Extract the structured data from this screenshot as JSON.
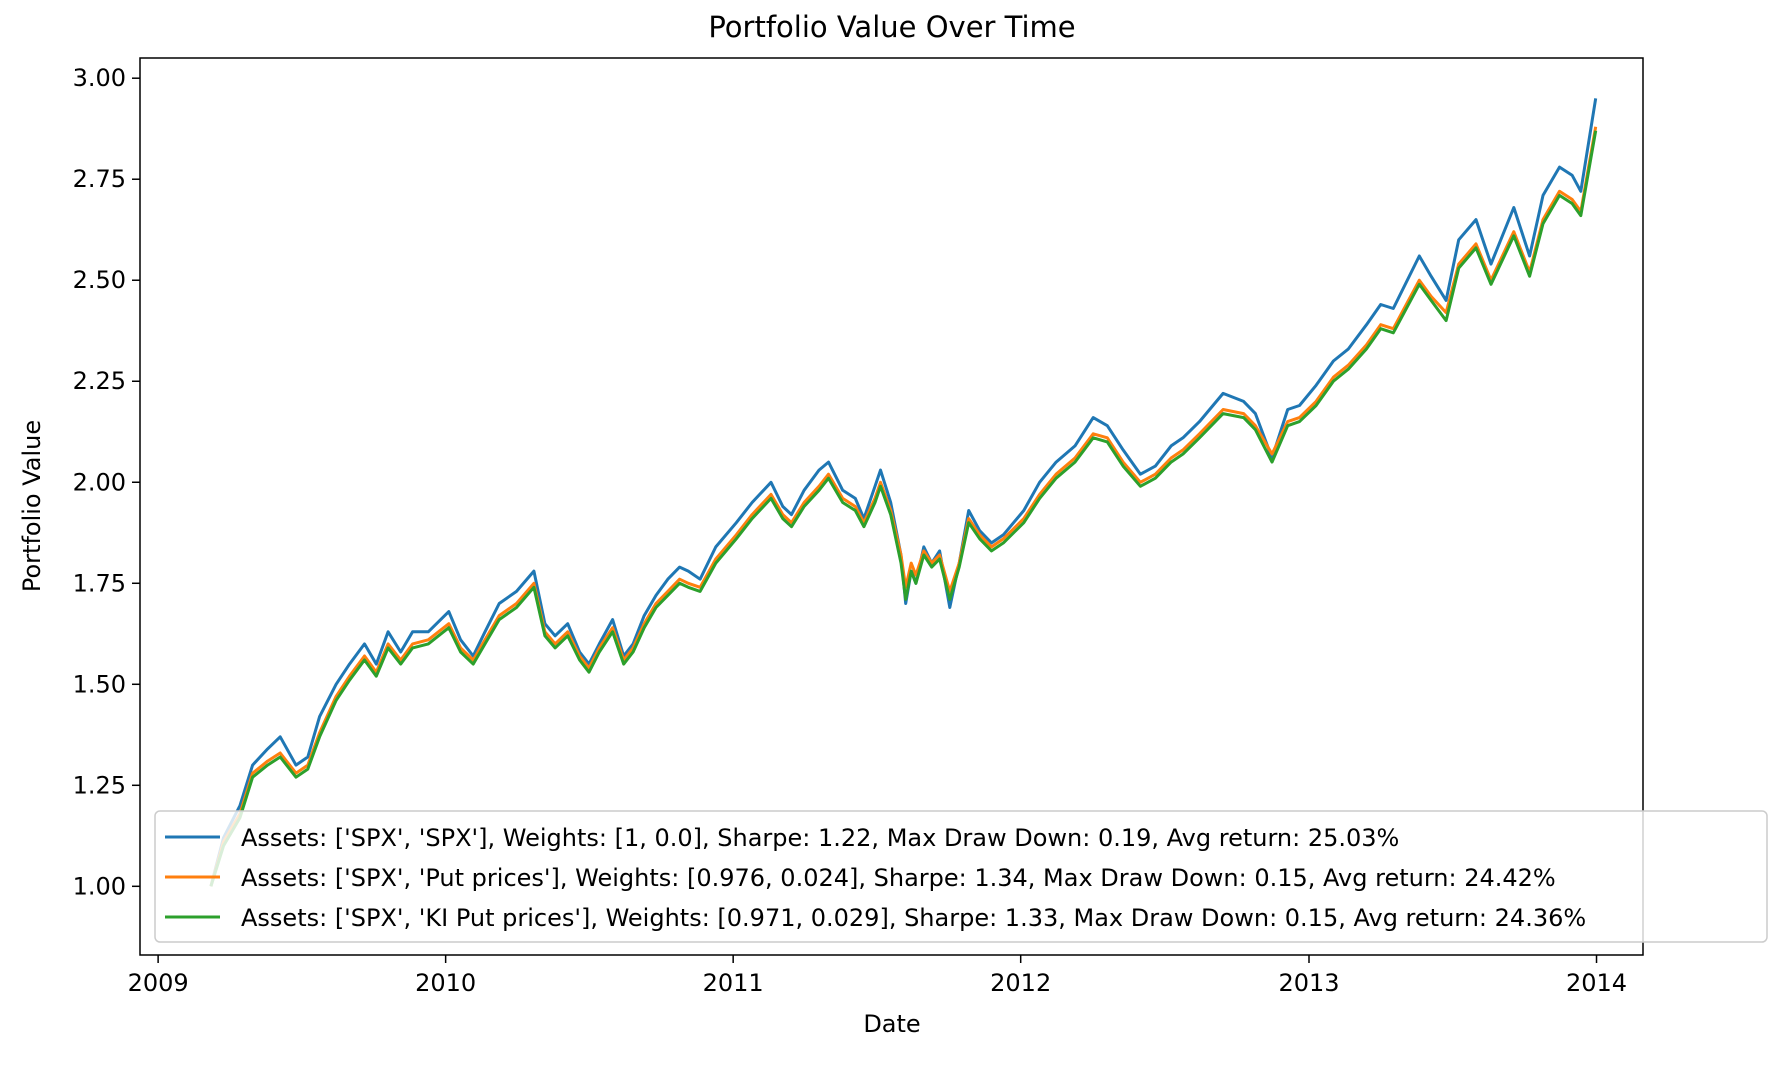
{
  "chart_data": {
    "type": "line",
    "title": "Portfolio Value Over Time",
    "xlabel": "Date",
    "ylabel": "Portfolio Value",
    "xlim": [
      "2008-12-09",
      "2014-03-01"
    ],
    "ylim": [
      0.83,
      3.05
    ],
    "xticks": [
      {
        "date": "2009-01-01",
        "label": "2009"
      },
      {
        "date": "2010-01-01",
        "label": "2010"
      },
      {
        "date": "2011-01-01",
        "label": "2011"
      },
      {
        "date": "2012-01-01",
        "label": "2012"
      },
      {
        "date": "2013-01-01",
        "label": "2013"
      },
      {
        "date": "2014-01-01",
        "label": "2014"
      }
    ],
    "yticks": [
      1.0,
      1.25,
      1.5,
      1.75,
      2.0,
      2.25,
      2.5,
      2.75,
      3.0
    ],
    "ytick_labels": [
      "1.00",
      "1.25",
      "1.50",
      "1.75",
      "2.00",
      "2.25",
      "2.50",
      "2.75",
      "3.00"
    ],
    "grid": false,
    "legend_position": "lower-right",
    "series": [
      {
        "name": "Assets: ['SPX', 'SPX'], Weights: [1, 0.0], Sharpe: 1.22, Max Draw Down: 0.19, Avg return: 25.03%",
        "color": "#1f77b4",
        "x": [
          "2009-03-09",
          "2009-03-25",
          "2009-04-15",
          "2009-05-01",
          "2009-05-20",
          "2009-06-05",
          "2009-06-25",
          "2009-07-10",
          "2009-07-25",
          "2009-08-15",
          "2009-09-01",
          "2009-09-20",
          "2009-10-05",
          "2009-10-20",
          "2009-11-05",
          "2009-11-20",
          "2009-12-10",
          "2010-01-05",
          "2010-01-20",
          "2010-02-05",
          "2010-02-20",
          "2010-03-10",
          "2010-04-01",
          "2010-04-23",
          "2010-05-07",
          "2010-05-20",
          "2010-06-05",
          "2010-06-20",
          "2010-07-02",
          "2010-07-15",
          "2010-08-01",
          "2010-08-15",
          "2010-08-27",
          "2010-09-10",
          "2010-09-25",
          "2010-10-10",
          "2010-10-25",
          "2010-11-05",
          "2010-11-20",
          "2010-12-10",
          "2011-01-05",
          "2011-01-25",
          "2011-02-18",
          "2011-03-05",
          "2011-03-16",
          "2011-04-01",
          "2011-04-20",
          "2011-05-02",
          "2011-05-20",
          "2011-06-05",
          "2011-06-16",
          "2011-06-30",
          "2011-07-07",
          "2011-07-20",
          "2011-08-02",
          "2011-08-08",
          "2011-08-15",
          "2011-08-21",
          "2011-08-31",
          "2011-09-10",
          "2011-09-20",
          "2011-10-03",
          "2011-10-15",
          "2011-10-27",
          "2011-11-10",
          "2011-11-25",
          "2011-12-10",
          "2012-01-05",
          "2012-01-25",
          "2012-02-15",
          "2012-03-10",
          "2012-04-02",
          "2012-04-20",
          "2012-05-10",
          "2012-06-01",
          "2012-06-20",
          "2012-07-10",
          "2012-07-25",
          "2012-08-15",
          "2012-09-14",
          "2012-10-10",
          "2012-10-25",
          "2012-11-15",
          "2012-12-05",
          "2012-12-20",
          "2013-01-10",
          "2013-02-01",
          "2013-02-20",
          "2013-03-15",
          "2013-04-02",
          "2013-04-18",
          "2013-05-21",
          "2013-06-05",
          "2013-06-24",
          "2013-07-10",
          "2013-08-01",
          "2013-08-20",
          "2013-09-18",
          "2013-10-08",
          "2013-10-25",
          "2013-11-15",
          "2013-12-01",
          "2013-12-12",
          "2013-12-31"
        ],
        "y": [
          1.0,
          1.12,
          1.2,
          1.3,
          1.34,
          1.37,
          1.3,
          1.32,
          1.42,
          1.5,
          1.55,
          1.6,
          1.55,
          1.63,
          1.58,
          1.63,
          1.63,
          1.68,
          1.61,
          1.57,
          1.63,
          1.7,
          1.73,
          1.78,
          1.65,
          1.62,
          1.65,
          1.58,
          1.55,
          1.6,
          1.66,
          1.57,
          1.6,
          1.67,
          1.72,
          1.76,
          1.79,
          1.78,
          1.76,
          1.84,
          1.9,
          1.95,
          2.0,
          1.94,
          1.92,
          1.98,
          2.03,
          2.05,
          1.98,
          1.96,
          1.91,
          1.99,
          2.03,
          1.95,
          1.82,
          1.7,
          1.78,
          1.75,
          1.84,
          1.8,
          1.83,
          1.69,
          1.8,
          1.93,
          1.88,
          1.85,
          1.87,
          1.93,
          2.0,
          2.05,
          2.09,
          2.16,
          2.14,
          2.08,
          2.02,
          2.04,
          2.09,
          2.11,
          2.15,
          2.22,
          2.2,
          2.17,
          2.06,
          2.18,
          2.19,
          2.24,
          2.3,
          2.33,
          2.39,
          2.44,
          2.43,
          2.56,
          2.51,
          2.45,
          2.6,
          2.65,
          2.54,
          2.68,
          2.56,
          2.71,
          2.78,
          2.76,
          2.72,
          2.95
        ]
      },
      {
        "name": "Assets: ['SPX', 'Put prices'], Weights: [0.976, 0.024], Sharpe: 1.34, Max Draw Down: 0.15, Avg return: 24.42%",
        "color": "#ff7f0e",
        "x": [
          "2009-03-09",
          "2009-03-25",
          "2009-04-15",
          "2009-05-01",
          "2009-05-20",
          "2009-06-05",
          "2009-06-25",
          "2009-07-10",
          "2009-07-25",
          "2009-08-15",
          "2009-09-01",
          "2009-09-20",
          "2009-10-05",
          "2009-10-20",
          "2009-11-05",
          "2009-11-20",
          "2009-12-10",
          "2010-01-05",
          "2010-01-20",
          "2010-02-05",
          "2010-02-20",
          "2010-03-10",
          "2010-04-01",
          "2010-04-23",
          "2010-05-07",
          "2010-05-20",
          "2010-06-05",
          "2010-06-20",
          "2010-07-02",
          "2010-07-15",
          "2010-08-01",
          "2010-08-15",
          "2010-08-27",
          "2010-09-10",
          "2010-09-25",
          "2010-10-10",
          "2010-10-25",
          "2010-11-05",
          "2010-11-20",
          "2010-12-10",
          "2011-01-05",
          "2011-01-25",
          "2011-02-18",
          "2011-03-05",
          "2011-03-16",
          "2011-04-01",
          "2011-04-20",
          "2011-05-02",
          "2011-05-20",
          "2011-06-05",
          "2011-06-16",
          "2011-06-30",
          "2011-07-07",
          "2011-07-20",
          "2011-08-02",
          "2011-08-08",
          "2011-08-15",
          "2011-08-21",
          "2011-08-31",
          "2011-09-10",
          "2011-09-20",
          "2011-10-03",
          "2011-10-15",
          "2011-10-27",
          "2011-11-10",
          "2011-11-25",
          "2011-12-10",
          "2012-01-05",
          "2012-01-25",
          "2012-02-15",
          "2012-03-10",
          "2012-04-02",
          "2012-04-20",
          "2012-05-10",
          "2012-06-01",
          "2012-06-20",
          "2012-07-10",
          "2012-07-25",
          "2012-08-15",
          "2012-09-14",
          "2012-10-10",
          "2012-10-25",
          "2012-11-15",
          "2012-12-05",
          "2012-12-20",
          "2013-01-10",
          "2013-02-01",
          "2013-02-20",
          "2013-03-15",
          "2013-04-02",
          "2013-04-18",
          "2013-05-21",
          "2013-06-05",
          "2013-06-24",
          "2013-07-10",
          "2013-08-01",
          "2013-08-20",
          "2013-09-18",
          "2013-10-08",
          "2013-10-25",
          "2013-11-15",
          "2013-12-01",
          "2013-12-12",
          "2013-12-31"
        ],
        "y": [
          1.0,
          1.11,
          1.18,
          1.28,
          1.31,
          1.33,
          1.28,
          1.3,
          1.38,
          1.47,
          1.52,
          1.57,
          1.53,
          1.6,
          1.56,
          1.6,
          1.61,
          1.65,
          1.59,
          1.56,
          1.61,
          1.67,
          1.7,
          1.75,
          1.63,
          1.6,
          1.63,
          1.57,
          1.54,
          1.59,
          1.64,
          1.56,
          1.59,
          1.65,
          1.7,
          1.73,
          1.76,
          1.75,
          1.74,
          1.81,
          1.87,
          1.92,
          1.97,
          1.92,
          1.9,
          1.95,
          1.99,
          2.02,
          1.96,
          1.94,
          1.9,
          1.96,
          2.0,
          1.93,
          1.82,
          1.74,
          1.8,
          1.77,
          1.83,
          1.8,
          1.82,
          1.73,
          1.8,
          1.91,
          1.87,
          1.84,
          1.86,
          1.91,
          1.97,
          2.02,
          2.06,
          2.12,
          2.11,
          2.05,
          2.0,
          2.02,
          2.06,
          2.08,
          2.12,
          2.18,
          2.17,
          2.14,
          2.07,
          2.15,
          2.16,
          2.2,
          2.26,
          2.29,
          2.34,
          2.39,
          2.38,
          2.5,
          2.46,
          2.42,
          2.54,
          2.59,
          2.5,
          2.62,
          2.52,
          2.65,
          2.72,
          2.7,
          2.67,
          2.88
        ]
      },
      {
        "name": "Assets: ['SPX', 'KI Put prices'], Weights: [0.971, 0.029], Sharpe: 1.33, Max Draw Down: 0.15, Avg return: 24.36%",
        "color": "#2ca02c",
        "x": [
          "2009-03-09",
          "2009-03-25",
          "2009-04-15",
          "2009-05-01",
          "2009-05-20",
          "2009-06-05",
          "2009-06-25",
          "2009-07-10",
          "2009-07-25",
          "2009-08-15",
          "2009-09-01",
          "2009-09-20",
          "2009-10-05",
          "2009-10-20",
          "2009-11-05",
          "2009-11-20",
          "2009-12-10",
          "2010-01-05",
          "2010-01-20",
          "2010-02-05",
          "2010-02-20",
          "2010-03-10",
          "2010-04-01",
          "2010-04-23",
          "2010-05-07",
          "2010-05-20",
          "2010-06-05",
          "2010-06-20",
          "2010-07-02",
          "2010-07-15",
          "2010-08-01",
          "2010-08-15",
          "2010-08-27",
          "2010-09-10",
          "2010-09-25",
          "2010-10-10",
          "2010-10-25",
          "2010-11-05",
          "2010-11-20",
          "2010-12-10",
          "2011-01-05",
          "2011-01-25",
          "2011-02-18",
          "2011-03-05",
          "2011-03-16",
          "2011-04-01",
          "2011-04-20",
          "2011-05-02",
          "2011-05-20",
          "2011-06-05",
          "2011-06-16",
          "2011-06-30",
          "2011-07-07",
          "2011-07-20",
          "2011-08-02",
          "2011-08-08",
          "2011-08-15",
          "2011-08-21",
          "2011-08-31",
          "2011-09-10",
          "2011-09-20",
          "2011-10-03",
          "2011-10-15",
          "2011-10-27",
          "2011-11-10",
          "2011-11-25",
          "2011-12-10",
          "2012-01-05",
          "2012-01-25",
          "2012-02-15",
          "2012-03-10",
          "2012-04-02",
          "2012-04-20",
          "2012-05-10",
          "2012-06-01",
          "2012-06-20",
          "2012-07-10",
          "2012-07-25",
          "2012-08-15",
          "2012-09-14",
          "2012-10-10",
          "2012-10-25",
          "2012-11-15",
          "2012-12-05",
          "2012-12-20",
          "2013-01-10",
          "2013-02-01",
          "2013-02-20",
          "2013-03-15",
          "2013-04-02",
          "2013-04-18",
          "2013-05-21",
          "2013-06-05",
          "2013-06-24",
          "2013-07-10",
          "2013-08-01",
          "2013-08-20",
          "2013-09-18",
          "2013-10-08",
          "2013-10-25",
          "2013-11-15",
          "2013-12-01",
          "2013-12-12",
          "2013-12-31"
        ],
        "y": [
          1.0,
          1.1,
          1.17,
          1.27,
          1.3,
          1.32,
          1.27,
          1.29,
          1.37,
          1.46,
          1.51,
          1.56,
          1.52,
          1.59,
          1.55,
          1.59,
          1.6,
          1.64,
          1.58,
          1.55,
          1.6,
          1.66,
          1.69,
          1.74,
          1.62,
          1.59,
          1.62,
          1.56,
          1.53,
          1.58,
          1.63,
          1.55,
          1.58,
          1.64,
          1.69,
          1.72,
          1.75,
          1.74,
          1.73,
          1.8,
          1.86,
          1.91,
          1.96,
          1.91,
          1.89,
          1.94,
          1.98,
          2.01,
          1.95,
          1.93,
          1.89,
          1.95,
          1.99,
          1.92,
          1.8,
          1.71,
          1.78,
          1.75,
          1.82,
          1.79,
          1.81,
          1.71,
          1.79,
          1.9,
          1.86,
          1.83,
          1.85,
          1.9,
          1.96,
          2.01,
          2.05,
          2.11,
          2.1,
          2.04,
          1.99,
          2.01,
          2.05,
          2.07,
          2.11,
          2.17,
          2.16,
          2.13,
          2.05,
          2.14,
          2.15,
          2.19,
          2.25,
          2.28,
          2.33,
          2.38,
          2.37,
          2.49,
          2.45,
          2.4,
          2.53,
          2.58,
          2.49,
          2.61,
          2.51,
          2.64,
          2.71,
          2.69,
          2.66,
          2.87
        ]
      }
    ]
  }
}
